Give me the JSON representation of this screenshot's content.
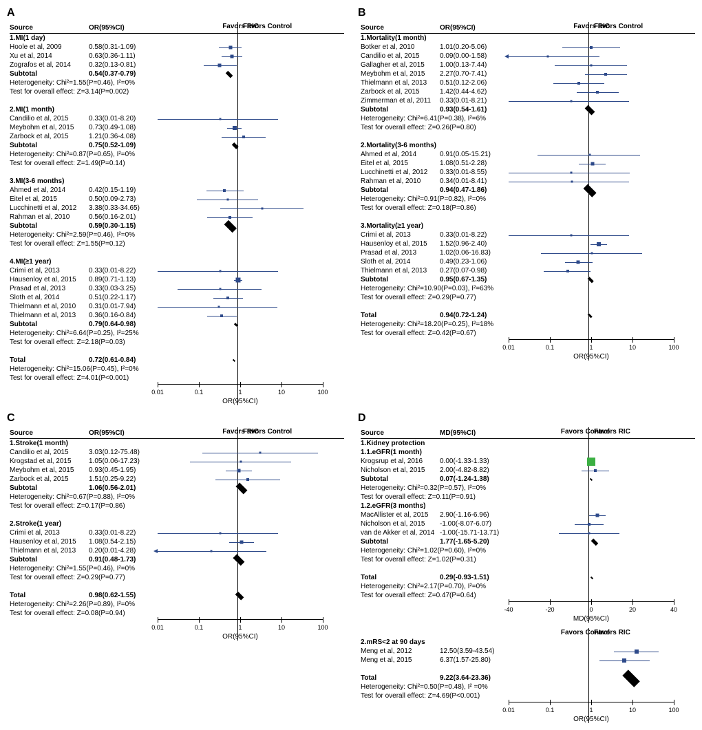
{
  "axis": {
    "min_log": -2,
    "max_log": 2,
    "ticks": [
      0.01,
      0.1,
      1,
      10,
      100
    ],
    "label_A": "OR(95%CI)",
    "label_B": "OR(95%CI)",
    "label_C": "OR(95%CI)",
    "label_D_top": "MD(95%CI)",
    "label_D_bot": "OR(95%CI)",
    "favors_left_ric": "Favors RIC",
    "favors_right_ctrl": "Favors Control",
    "favors_left_ctrl": "Favors Control",
    "favors_right_ric": "Favors RIC",
    "header_source": "Source",
    "header_or": "OR(95%CI)",
    "header_md": "MD(95%CI)"
  },
  "axis_D_top": {
    "min": -40,
    "max": 40,
    "ticks": [
      -40,
      -20,
      0,
      20,
      40
    ]
  },
  "panels": {
    "A": {
      "label": "A",
      "groups": [
        {
          "title": "1.MI(1 day)",
          "rows": [
            {
              "src": "Hoole et al,  2009",
              "txt": "0.58(0.31-1.09)",
              "or": 0.58,
              "lo": 0.31,
              "hi": 1.09,
              "w": 5
            },
            {
              "src": "Xu et al,  2014",
              "txt": "0.63(0.36-1.11)",
              "or": 0.63,
              "lo": 0.36,
              "hi": 1.11,
              "w": 5
            },
            {
              "src": "Zografos et al,  2014",
              "txt": "0.32(0.13-0.81)",
              "or": 0.32,
              "lo": 0.13,
              "hi": 0.81,
              "w": 5
            }
          ],
          "subtotal": {
            "txt": "0.54(0.37-0.79)",
            "or": 0.54,
            "lo": 0.37,
            "hi": 0.79
          },
          "het": "Heterogeneity: Chi²=1.55(P=0.46), I²=0%",
          "eff": "Test for overall effect: Z=3.14(P=0.002)"
        },
        {
          "title": "2.MI(1 month)",
          "rows": [
            {
              "src": "Candilio et al,  2015",
              "txt": "0.33(0.01-8.20)",
              "or": 0.33,
              "lo": 0.01,
              "hi": 8.2,
              "w": 3
            },
            {
              "src": "Meybohm et al,  2015",
              "txt": "0.73(0.49-1.08)",
              "or": 0.73,
              "lo": 0.49,
              "hi": 1.08,
              "w": 6
            },
            {
              "src": "Zarbock et al,  2015",
              "txt": "1.21(0.36-4.08)",
              "or": 1.21,
              "lo": 0.36,
              "hi": 4.08,
              "w": 4
            }
          ],
          "subtotal": {
            "txt": "0.75(0.52-1.09)",
            "or": 0.75,
            "lo": 0.52,
            "hi": 1.09
          },
          "het": "Heterogeneity: Chi²=0.87(P=0.65), I²=0%",
          "eff": "Test for overall effect: Z=1.49(P=0.14)"
        },
        {
          "title": "3.MI(3-6 months)",
          "rows": [
            {
              "src": "Ahmed et al,  2014",
              "txt": "0.42(0.15-1.19)",
              "or": 0.42,
              "lo": 0.15,
              "hi": 1.19,
              "w": 4
            },
            {
              "src": "Eitel et al,  2015",
              "txt": "0.50(0.09-2.73)",
              "or": 0.5,
              "lo": 0.09,
              "hi": 2.73,
              "w": 3
            },
            {
              "src": "Lucchinetti et al,  2012",
              "txt": "3.38(0.33-34.65)",
              "or": 3.38,
              "lo": 0.33,
              "hi": 34.65,
              "w": 3
            },
            {
              "src": "Rahman et al,  2010",
              "txt": "0.56(0.16-2.01)",
              "or": 0.56,
              "lo": 0.16,
              "hi": 2.01,
              "w": 4
            }
          ],
          "subtotal": {
            "txt": "0.59(0.30-1.15)",
            "or": 0.59,
            "lo": 0.3,
            "hi": 1.15
          },
          "het": "Heterogeneity: Chi²=2.59(P=0.46), I²=0%",
          "eff": "Test for overall effect: Z=1.55(P=0.12)"
        },
        {
          "title": "4.MI(≥1 year)",
          "rows": [
            {
              "src": "Crimi et al,  2013",
              "txt": "0.33(0.01-8.22)",
              "or": 0.33,
              "lo": 0.01,
              "hi": 8.22,
              "w": 3
            },
            {
              "src": "Hausenloy et al,  2015",
              "txt": "0.89(0.71-1.13)",
              "or": 0.89,
              "lo": 0.71,
              "hi": 1.13,
              "w": 7
            },
            {
              "src": "Prasad et al,  2013",
              "txt": "0.33(0.03-3.25)",
              "or": 0.33,
              "lo": 0.03,
              "hi": 3.25,
              "w": 3
            },
            {
              "src": "Sloth et al,  2014",
              "txt": "0.51(0.22-1.17)",
              "or": 0.51,
              "lo": 0.22,
              "hi": 1.17,
              "w": 4
            },
            {
              "src": "Thielmann et al,  2010",
              "txt": "0.31(0.01-7.94)",
              "or": 0.31,
              "lo": 0.01,
              "hi": 7.94,
              "w": 3
            },
            {
              "src": "Thielmann et al,  2013",
              "txt": "0.36(0.16-0.84)",
              "or": 0.36,
              "lo": 0.16,
              "hi": 0.84,
              "w": 4
            }
          ],
          "subtotal": {
            "txt": "0.79(0.64-0.98)",
            "or": 0.79,
            "lo": 0.64,
            "hi": 0.98
          },
          "het": "Heterogeneity: Chi²=6.64(P=0.25), I²=25%",
          "eff": "Test for overall effect: Z=2.18(P=0.03)"
        }
      ],
      "total": {
        "txt": "0.72(0.61-0.84)",
        "or": 0.72,
        "lo": 0.61,
        "hi": 0.84
      },
      "het": "Heterogeneity: Chi²=15.06(P=0.45), I²=0%",
      "eff": "Test for overall effect: Z=4.01(P<0.001)"
    },
    "B": {
      "label": "B",
      "groups": [
        {
          "title": "1.Mortality(1 month)",
          "rows": [
            {
              "src": "Botker et al,  2010",
              "txt": "1.01(0.20-5.06)",
              "or": 1.01,
              "lo": 0.2,
              "hi": 5.06,
              "w": 4
            },
            {
              "src": "Candilio et al,  2015",
              "txt": "0.09(0.00-1.58)",
              "or": 0.09,
              "lo": 0.004,
              "hi": 1.58,
              "w": 3,
              "arrowL": true
            },
            {
              "src": "Gallagher et al,  2015",
              "txt": "1.00(0.13-7.44)",
              "or": 1.0,
              "lo": 0.13,
              "hi": 7.44,
              "w": 3
            },
            {
              "src": "Meybohm et al,  2015",
              "txt": "2.27(0.70-7.41)",
              "or": 2.27,
              "lo": 0.7,
              "hi": 7.41,
              "w": 4
            },
            {
              "src": "Thielmann et al,  2013",
              "txt": "0.51(0.12-2.06)",
              "or": 0.51,
              "lo": 0.12,
              "hi": 2.06,
              "w": 4
            },
            {
              "src": "Zarbock et al,  2015",
              "txt": "1.42(0.44-4.62)",
              "or": 1.42,
              "lo": 0.44,
              "hi": 4.62,
              "w": 4
            },
            {
              "src": "Zimmerman et al,  2011",
              "txt": "0.33(0.01-8.21)",
              "or": 0.33,
              "lo": 0.01,
              "hi": 8.21,
              "w": 3
            }
          ],
          "subtotal": {
            "txt": "0.93(0.54-1.61)",
            "or": 0.93,
            "lo": 0.54,
            "hi": 1.61
          },
          "het": "Heterogeneity: Chi²=6.41(P=0.38), I²=6%",
          "eff": "Test for overall effect: Z=0.26(P=0.80)"
        },
        {
          "title": "2.Mortality(3-6 months)",
          "rows": [
            {
              "src": "Ahmed et al,  2014",
              "txt": "0.91(0.05-15.21)",
              "or": 0.91,
              "lo": 0.05,
              "hi": 15.21,
              "w": 3
            },
            {
              "src": "Eitel et al,  2015",
              "txt": "1.08(0.51-2.28)",
              "or": 1.08,
              "lo": 0.51,
              "hi": 2.28,
              "w": 5
            },
            {
              "src": "Lucchinetti et al,  2012",
              "txt": "0.33(0.01-8.55)",
              "or": 0.33,
              "lo": 0.01,
              "hi": 8.55,
              "w": 3
            },
            {
              "src": "Rahman et al,  2010",
              "txt": "0.34(0.01-8.41)",
              "or": 0.34,
              "lo": 0.01,
              "hi": 8.41,
              "w": 3
            }
          ],
          "subtotal": {
            "txt": "0.94(0.47-1.86)",
            "or": 0.94,
            "lo": 0.47,
            "hi": 1.86
          },
          "het": "Heterogeneity: Chi²=0.91(P=0.82), I²=0%",
          "eff": "Test for overall effect: Z=0.18(P=0.86)"
        },
        {
          "title": "3.Mortality(≥1 year)",
          "rows": [
            {
              "src": "Crimi et al,  2013",
              "txt": "0.33(0.01-8.22)",
              "or": 0.33,
              "lo": 0.01,
              "hi": 8.22,
              "w": 3
            },
            {
              "src": "Hausenloy et al,  2015",
              "txt": "1.52(0.96-2.40)",
              "or": 1.52,
              "lo": 0.96,
              "hi": 2.4,
              "w": 6
            },
            {
              "src": "Prasad et al,  2013",
              "txt": "1.02(0.06-16.83)",
              "or": 1.02,
              "lo": 0.06,
              "hi": 16.83,
              "w": 3
            },
            {
              "src": "Sloth et al,  2014",
              "txt": "0.49(0.23-1.06)",
              "or": 0.49,
              "lo": 0.23,
              "hi": 1.06,
              "w": 5
            },
            {
              "src": "Thielmann et al,  2013",
              "txt": "0.27(0.07-0.98)",
              "or": 0.27,
              "lo": 0.07,
              "hi": 0.98,
              "w": 4
            }
          ],
          "subtotal": {
            "txt": "0.95(0.67-1.35)",
            "or": 0.95,
            "lo": 0.67,
            "hi": 1.35
          },
          "het": "Heterogeneity: Chi²=10.90(P=0.03), I²=63%",
          "eff": "Test for overall effect: Z=0.29(P=0.77)"
        }
      ],
      "total": {
        "txt": "0.94(0.72-1.24)",
        "or": 0.94,
        "lo": 0.72,
        "hi": 1.24
      },
      "het": "Heterogeneity: Chi²=18.20(P=0.25), I²=18%",
      "eff": "Test for overall effect: Z=0.42(P=0.67)"
    },
    "C": {
      "label": "C",
      "groups": [
        {
          "title": "1.Stroke(1 month)",
          "rows": [
            {
              "src": "Candilio et al,  2015",
              "txt": "3.03(0.12-75.48)",
              "or": 3.03,
              "lo": 0.12,
              "hi": 75.48,
              "w": 3
            },
            {
              "src": "Krogstad et al,  2015",
              "txt": "1.05(0.06-17.23)",
              "or": 1.05,
              "lo": 0.06,
              "hi": 17.23,
              "w": 3
            },
            {
              "src": "Meybohm et al,  2015",
              "txt": "0.93(0.45-1.95)",
              "or": 0.93,
              "lo": 0.45,
              "hi": 1.95,
              "w": 5
            },
            {
              "src": "Zarbock et al,  2015",
              "txt": "1.51(0.25-9.22)",
              "or": 1.51,
              "lo": 0.25,
              "hi": 9.22,
              "w": 4
            }
          ],
          "subtotal": {
            "txt": "1.06(0.56-2.01)",
            "or": 1.06,
            "lo": 0.56,
            "hi": 2.01
          },
          "het": "Heterogeneity: Chi²=0.67(P=0.88), I²=0%",
          "eff": "Test for overall effect: Z=0.17(P=0.86)"
        },
        {
          "title": "2.Stroke(1 year)",
          "rows": [
            {
              "src": "Crimi et al,  2013",
              "txt": "0.33(0.01-8.22)",
              "or": 0.33,
              "lo": 0.01,
              "hi": 8.22,
              "w": 3
            },
            {
              "src": "Hausenloy et al,  2015",
              "txt": "1.08(0.54-2.15)",
              "or": 1.08,
              "lo": 0.54,
              "hi": 2.15,
              "w": 5
            },
            {
              "src": "Thielmann et al,  2013",
              "txt": "0.20(0.01-4.28)",
              "or": 0.2,
              "lo": 0.01,
              "hi": 4.28,
              "w": 3,
              "arrowL": true
            }
          ],
          "subtotal": {
            "txt": "0.91(0.48-1.73)",
            "or": 0.91,
            "lo": 0.48,
            "hi": 1.73
          },
          "het": "Heterogeneity: Chi²=1.55(P=0.46), I²=0%",
          "eff": "Test for overall effect: Z=0.29(P=0.77)"
        }
      ],
      "total": {
        "txt": "0.98(0.62-1.55)",
        "or": 0.98,
        "lo": 0.62,
        "hi": 1.55
      },
      "het": "Heterogeneity: Chi²=2.26(P=0.89), I²=0%",
      "eff": "Test for overall effect: Z=0.08(P=0.94)"
    },
    "D": {
      "label": "D",
      "top_groups": [
        {
          "title": "1.Kidney protection",
          "subtitle": "1.1.eGFR(1 month)",
          "rows": [
            {
              "src": "Krogsrup et al,  2016",
              "txt": "0.00(-1.33-1.33)",
              "or": 0.0,
              "lo": -1.33,
              "hi": 1.33,
              "w": 12,
              "green": true
            },
            {
              "src": "Nicholson et al,  2015",
              "txt": "2.00(-4.82-8.82)",
              "or": 2.0,
              "lo": -4.82,
              "hi": 8.82,
              "w": 4
            }
          ],
          "subtotal": {
            "txt": "0.07(-1.24-1.38)",
            "or": 0.07,
            "lo": -1.24,
            "hi": 1.38
          },
          "het": "Heterogeneity: Chi²=0.32(P=0.57), I²=0%",
          "eff": "Test for overall effect: Z=0.11(P=0.91)"
        },
        {
          "title": "1.2.eGFR(3 months)",
          "rows": [
            {
              "src": "MacAllister et al,  2015",
              "txt": "2.90(-1.16-6.96)",
              "or": 2.9,
              "lo": -1.16,
              "hi": 6.96,
              "w": 5
            },
            {
              "src": "Nicholson et al,  2015",
              "txt": "-1.00(-8.07-6.07)",
              "or": -1.0,
              "lo": -8.07,
              "hi": 6.07,
              "w": 4
            },
            {
              "src": "van de Akker et al,  2014",
              "txt": "-1.00(-15.71-13.71)",
              "or": -1.0,
              "lo": -15.71,
              "hi": 13.71,
              "w": 3
            }
          ],
          "subtotal": {
            "txt": "1.77(-1.65-5.20)",
            "or": 1.77,
            "lo": -1.65,
            "hi": 5.2
          },
          "het": "Heterogeneity: Chi²=1.02(P=0.60), I²=0%",
          "eff": "Test for overall effect: Z=1.02(P=0.31)"
        }
      ],
      "top_total": {
        "txt": "0.29(-0.93-1.51)",
        "or": 0.29,
        "lo": -0.93,
        "hi": 1.51
      },
      "top_het": "Heterogeneity: Chi²=2.17(P=0.70), I²=0%",
      "top_eff": "Test for overall effect: Z=0.47(P=0.64)",
      "bot_title": "2.mRS<2 at 90 days",
      "bot_rows": [
        {
          "src": "Meng et al,  2012",
          "txt": "12.50(3.59-43.54)",
          "or": 12.5,
          "lo": 3.59,
          "hi": 43.54,
          "w": 6
        },
        {
          "src": "Meng et al,  2015",
          "txt": "6.37(1.57-25.80)",
          "or": 6.37,
          "lo": 1.57,
          "hi": 25.8,
          "w": 6
        }
      ],
      "bot_total": {
        "txt": "9.22(3.64-23.36)",
        "or": 9.22,
        "lo": 3.64,
        "hi": 23.36
      },
      "bot_het": "Heterogeneity: Chi²=0.50(P=0.48), I² =0%",
      "bot_eff": "Test for overall effect: Z=4.69(P<0.001)"
    }
  }
}
